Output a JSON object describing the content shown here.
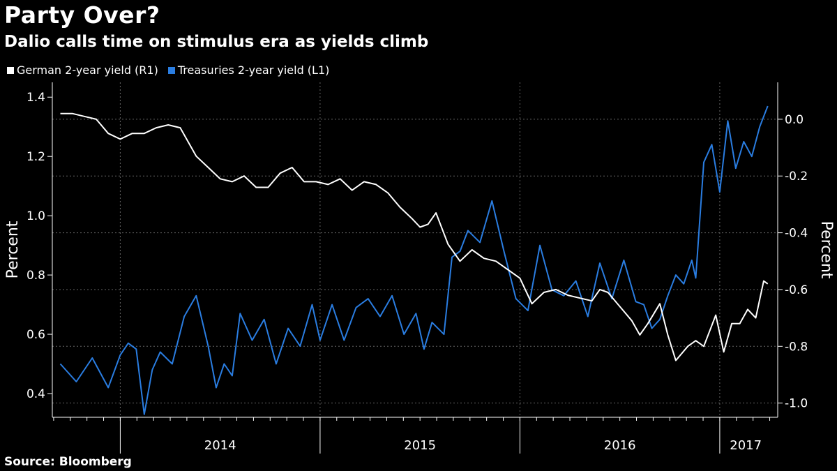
{
  "title": "Party Over?",
  "subtitle": "Dalio calls time on stimulus era as yields climb",
  "source": "Source: Bloomberg",
  "legend": [
    {
      "label": "German 2-year yield (R1)",
      "color": "#ffffff"
    },
    {
      "label": "Treasuries 2-year yield (L1)",
      "color": "#2a7de1"
    }
  ],
  "chart_data": {
    "type": "line",
    "x_categories": [
      "2014",
      "2015",
      "2016",
      "2017"
    ],
    "xlim": [
      "2013-09",
      "2017-03"
    ],
    "left_axis": {
      "label": "Percent",
      "ylim": [
        0.32,
        1.45
      ],
      "ticks": [
        "1.4",
        "1.2",
        "1.0",
        "0.8",
        "0.6",
        "0.4"
      ],
      "tick_values": [
        1.4,
        1.2,
        1.0,
        0.8,
        0.6,
        0.4
      ]
    },
    "right_axis": {
      "label": "Percent",
      "ylim": [
        -1.05,
        0.13
      ],
      "ticks": [
        "0.0",
        "-0.2",
        "-0.4",
        "-0.6",
        "-0.8",
        "-1.0"
      ],
      "tick_values": [
        0.0,
        -0.2,
        -0.4,
        -0.6,
        -0.8,
        -1.0
      ]
    },
    "series": [
      {
        "name": "Treasuries 2-year yield (L1)",
        "axis": "left",
        "color": "#2a7de1",
        "x": [
          2013.7,
          2013.78,
          2013.86,
          2013.94,
          2014.0,
          2014.04,
          2014.08,
          2014.12,
          2014.16,
          2014.2,
          2014.26,
          2014.32,
          2014.38,
          2014.44,
          2014.48,
          2014.52,
          2014.56,
          2014.6,
          2014.66,
          2014.72,
          2014.78,
          2014.84,
          2014.9,
          2014.96,
          2015.0,
          2015.06,
          2015.12,
          2015.18,
          2015.24,
          2015.3,
          2015.36,
          2015.42,
          2015.48,
          2015.52,
          2015.56,
          2015.62,
          2015.66,
          2015.7,
          2015.74,
          2015.8,
          2015.86,
          2015.92,
          2015.98,
          2016.04,
          2016.1,
          2016.16,
          2016.22,
          2016.28,
          2016.34,
          2016.4,
          2016.46,
          2016.52,
          2016.58,
          2016.62,
          2016.66,
          2016.7,
          2016.74,
          2016.78,
          2016.82,
          2016.86,
          2016.88,
          2016.92,
          2016.96,
          2017.0,
          2017.04,
          2017.08,
          2017.12,
          2017.16,
          2017.2,
          2017.24
        ],
        "values": [
          0.5,
          0.44,
          0.52,
          0.42,
          0.53,
          0.57,
          0.55,
          0.33,
          0.48,
          0.54,
          0.5,
          0.66,
          0.73,
          0.56,
          0.42,
          0.5,
          0.46,
          0.67,
          0.58,
          0.65,
          0.5,
          0.62,
          0.56,
          0.7,
          0.58,
          0.7,
          0.58,
          0.69,
          0.72,
          0.66,
          0.73,
          0.6,
          0.67,
          0.55,
          0.64,
          0.6,
          0.86,
          0.88,
          0.95,
          0.91,
          1.05,
          0.88,
          0.72,
          0.68,
          0.9,
          0.75,
          0.73,
          0.78,
          0.66,
          0.84,
          0.72,
          0.85,
          0.71,
          0.7,
          0.62,
          0.65,
          0.73,
          0.8,
          0.77,
          0.85,
          0.79,
          1.18,
          1.24,
          1.08,
          1.32,
          1.16,
          1.25,
          1.2,
          1.3,
          1.37
        ]
      },
      {
        "name": "German 2-year yield (R1)",
        "axis": "right",
        "color": "#ffffff",
        "x": [
          2013.7,
          2013.76,
          2013.82,
          2013.88,
          2013.94,
          2014.0,
          2014.06,
          2014.12,
          2014.18,
          2014.24,
          2014.3,
          2014.34,
          2014.38,
          2014.44,
          2014.5,
          2014.56,
          2014.62,
          2014.68,
          2014.74,
          2014.8,
          2014.86,
          2014.92,
          2014.98,
          2015.04,
          2015.1,
          2015.16,
          2015.22,
          2015.28,
          2015.34,
          2015.4,
          2015.46,
          2015.5,
          2015.54,
          2015.58,
          2015.64,
          2015.7,
          2015.76,
          2015.82,
          2015.88,
          2015.94,
          2016.0,
          2016.06,
          2016.12,
          2016.18,
          2016.24,
          2016.3,
          2016.36,
          2016.4,
          2016.44,
          2016.5,
          2016.56,
          2016.6,
          2016.64,
          2016.7,
          2016.74,
          2016.78,
          2016.84,
          2016.88,
          2016.92,
          2016.98,
          2017.02,
          2017.06,
          2017.1,
          2017.14,
          2017.18,
          2017.22,
          2017.24
        ],
        "values": [
          0.02,
          0.02,
          0.01,
          0.0,
          -0.05,
          -0.07,
          -0.05,
          -0.05,
          -0.03,
          -0.02,
          -0.03,
          -0.08,
          -0.13,
          -0.17,
          -0.21,
          -0.22,
          -0.2,
          -0.24,
          -0.24,
          -0.19,
          -0.17,
          -0.22,
          -0.22,
          -0.23,
          -0.21,
          -0.25,
          -0.22,
          -0.23,
          -0.26,
          -0.31,
          -0.35,
          -0.38,
          -0.37,
          -0.33,
          -0.44,
          -0.5,
          -0.46,
          -0.49,
          -0.5,
          -0.53,
          -0.56,
          -0.65,
          -0.61,
          -0.6,
          -0.62,
          -0.63,
          -0.64,
          -0.6,
          -0.61,
          -0.66,
          -0.71,
          -0.76,
          -0.72,
          -0.65,
          -0.76,
          -0.85,
          -0.8,
          -0.78,
          -0.8,
          -0.69,
          -0.82,
          -0.72,
          -0.72,
          -0.67,
          -0.7,
          -0.57,
          -0.58
        ]
      }
    ]
  }
}
